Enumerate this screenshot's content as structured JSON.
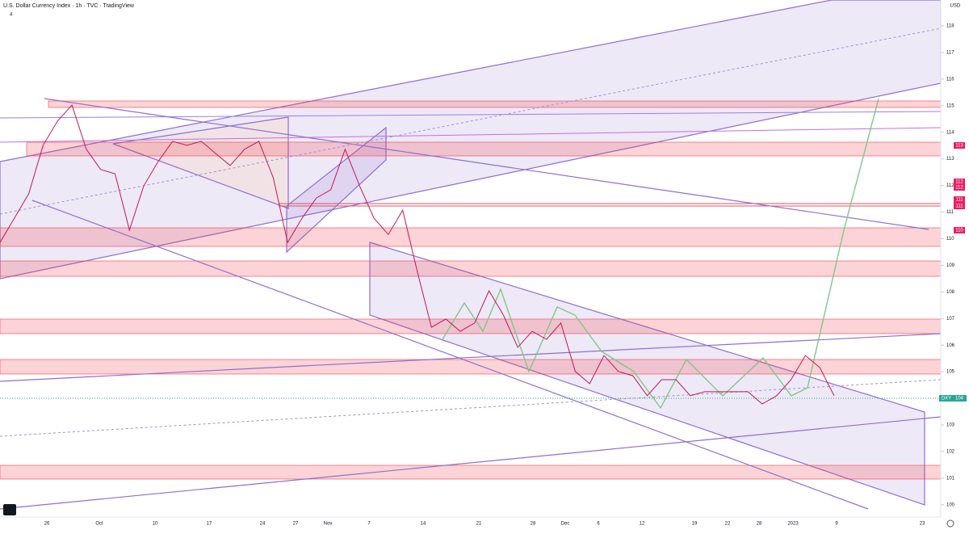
{
  "header": {
    "title": "U.S. Dollar Currency Index · 1h · TVC · TradingView",
    "counter": "4"
  },
  "price": {
    "currency": "USD",
    "ylim": [
      99.54,
      118.97
    ],
    "yticks": [
      100,
      101,
      102,
      103,
      104,
      105,
      106,
      107,
      108,
      109,
      110,
      111,
      112,
      113,
      114,
      115,
      116,
      117,
      118
    ],
    "values": [
      109.86,
      110.77,
      111.69,
      113.51,
      114.42,
      115.02,
      113.36,
      112.6,
      112.44,
      110.32,
      111.99,
      112.9,
      113.66,
      113.51,
      113.66,
      113.2,
      112.75,
      113.36,
      113.66,
      112.29,
      109.86,
      110.77,
      111.53,
      111.84,
      113.36,
      111.99,
      110.77,
      110.16,
      111.07,
      108.8,
      106.67,
      106.98,
      106.52,
      106.83,
      108.04,
      107.13,
      105.92,
      106.52,
      106.22,
      106.83,
      105.01,
      104.55,
      105.61,
      105.01,
      104.85,
      104.1,
      104.7,
      104.7,
      104.1,
      104.25,
      104.25,
      104.25,
      104.25,
      103.79,
      104.1,
      104.7,
      105.61,
      105.16,
      104.1
    ]
  },
  "time_axis": [
    "26",
    "Oct",
    "10",
    "17",
    "24",
    "27",
    "Nov",
    "7",
    "14",
    "21",
    "28",
    "Dec",
    "6",
    "12",
    "19",
    "22",
    "28",
    "2023",
    "9",
    "23"
  ],
  "price_tags": [
    "113",
    "112",
    "112",
    "111",
    "111",
    "110"
  ],
  "symbol_tag": {
    "symbol": "DXY",
    "last": "104"
  }
}
